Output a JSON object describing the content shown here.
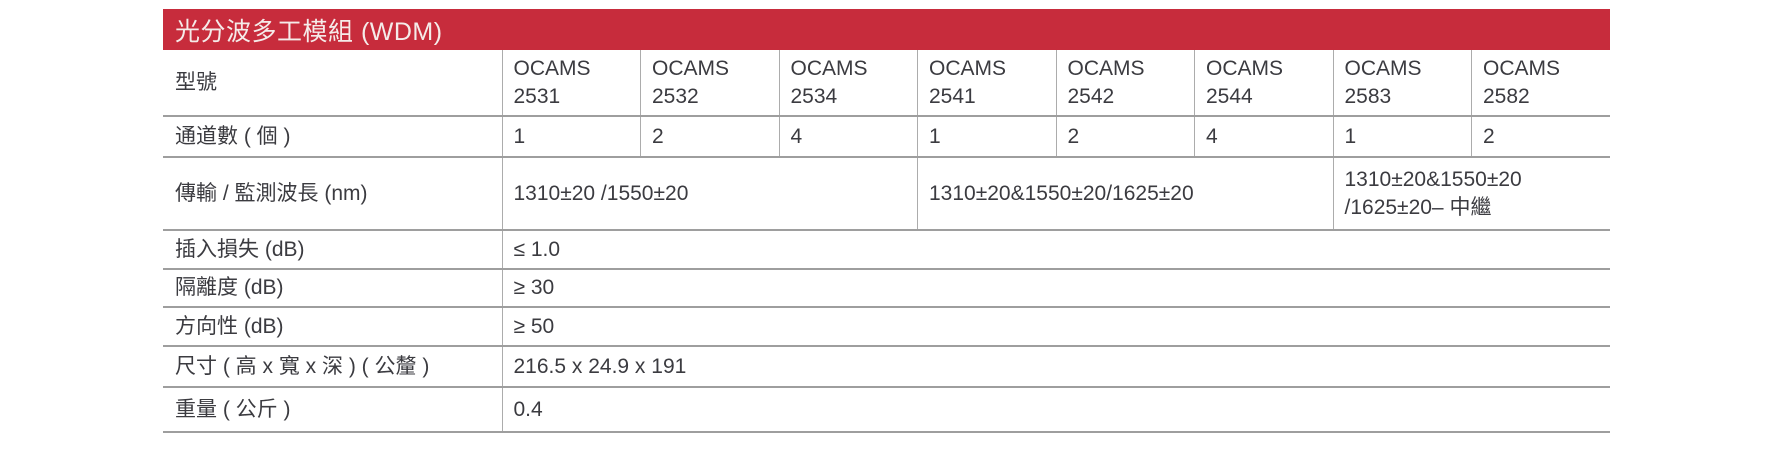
{
  "title": "光分波多工模組 (WDM)",
  "colors": {
    "header_bg": "#C72C3C",
    "header_text": "#F5EBE9",
    "rule_gray": "#9E9E9E",
    "divider_gray": "#ACACAC",
    "text": "#3B3B40"
  },
  "rows": {
    "model": {
      "label": "型號",
      "cells": [
        "OCAMS\n2531",
        "OCAMS\n2532",
        "OCAMS\n2534",
        "OCAMS\n2541",
        "OCAMS\n2542",
        "OCAMS\n2544",
        "OCAMS\n2583",
        "OCAMS\n2582"
      ]
    },
    "channels": {
      "label": "通道數 ( 個 )",
      "values": [
        "1",
        "2",
        "4",
        "1",
        "2",
        "4",
        "1",
        "2"
      ]
    },
    "wavelength": {
      "label": "傳輸 / 監測波長 (nm)",
      "groups": [
        {
          "value": "1310±20 /1550±20",
          "span": 3
        },
        {
          "value": "1310±20&1550±20/1625±20",
          "span": 3
        },
        {
          "value": "1310±20&1550±20\n/1625±20– 中繼",
          "span": 2
        }
      ]
    },
    "insertion_loss": {
      "label": "插入損失 (dB)",
      "value": "≤ 1.0"
    },
    "isolation": {
      "label": "隔離度 (dB)",
      "value": "≥ 30"
    },
    "directivity": {
      "label": "方向性 (dB)",
      "value": "≥ 50"
    },
    "dimensions": {
      "label": "尺寸 ( 高 x 寬 x 深 ) ( 公釐 )",
      "value": "216.5 x 24.9 x 191"
    },
    "weight": {
      "label": "重量 ( 公斤 )",
      "value": "0.4"
    }
  }
}
